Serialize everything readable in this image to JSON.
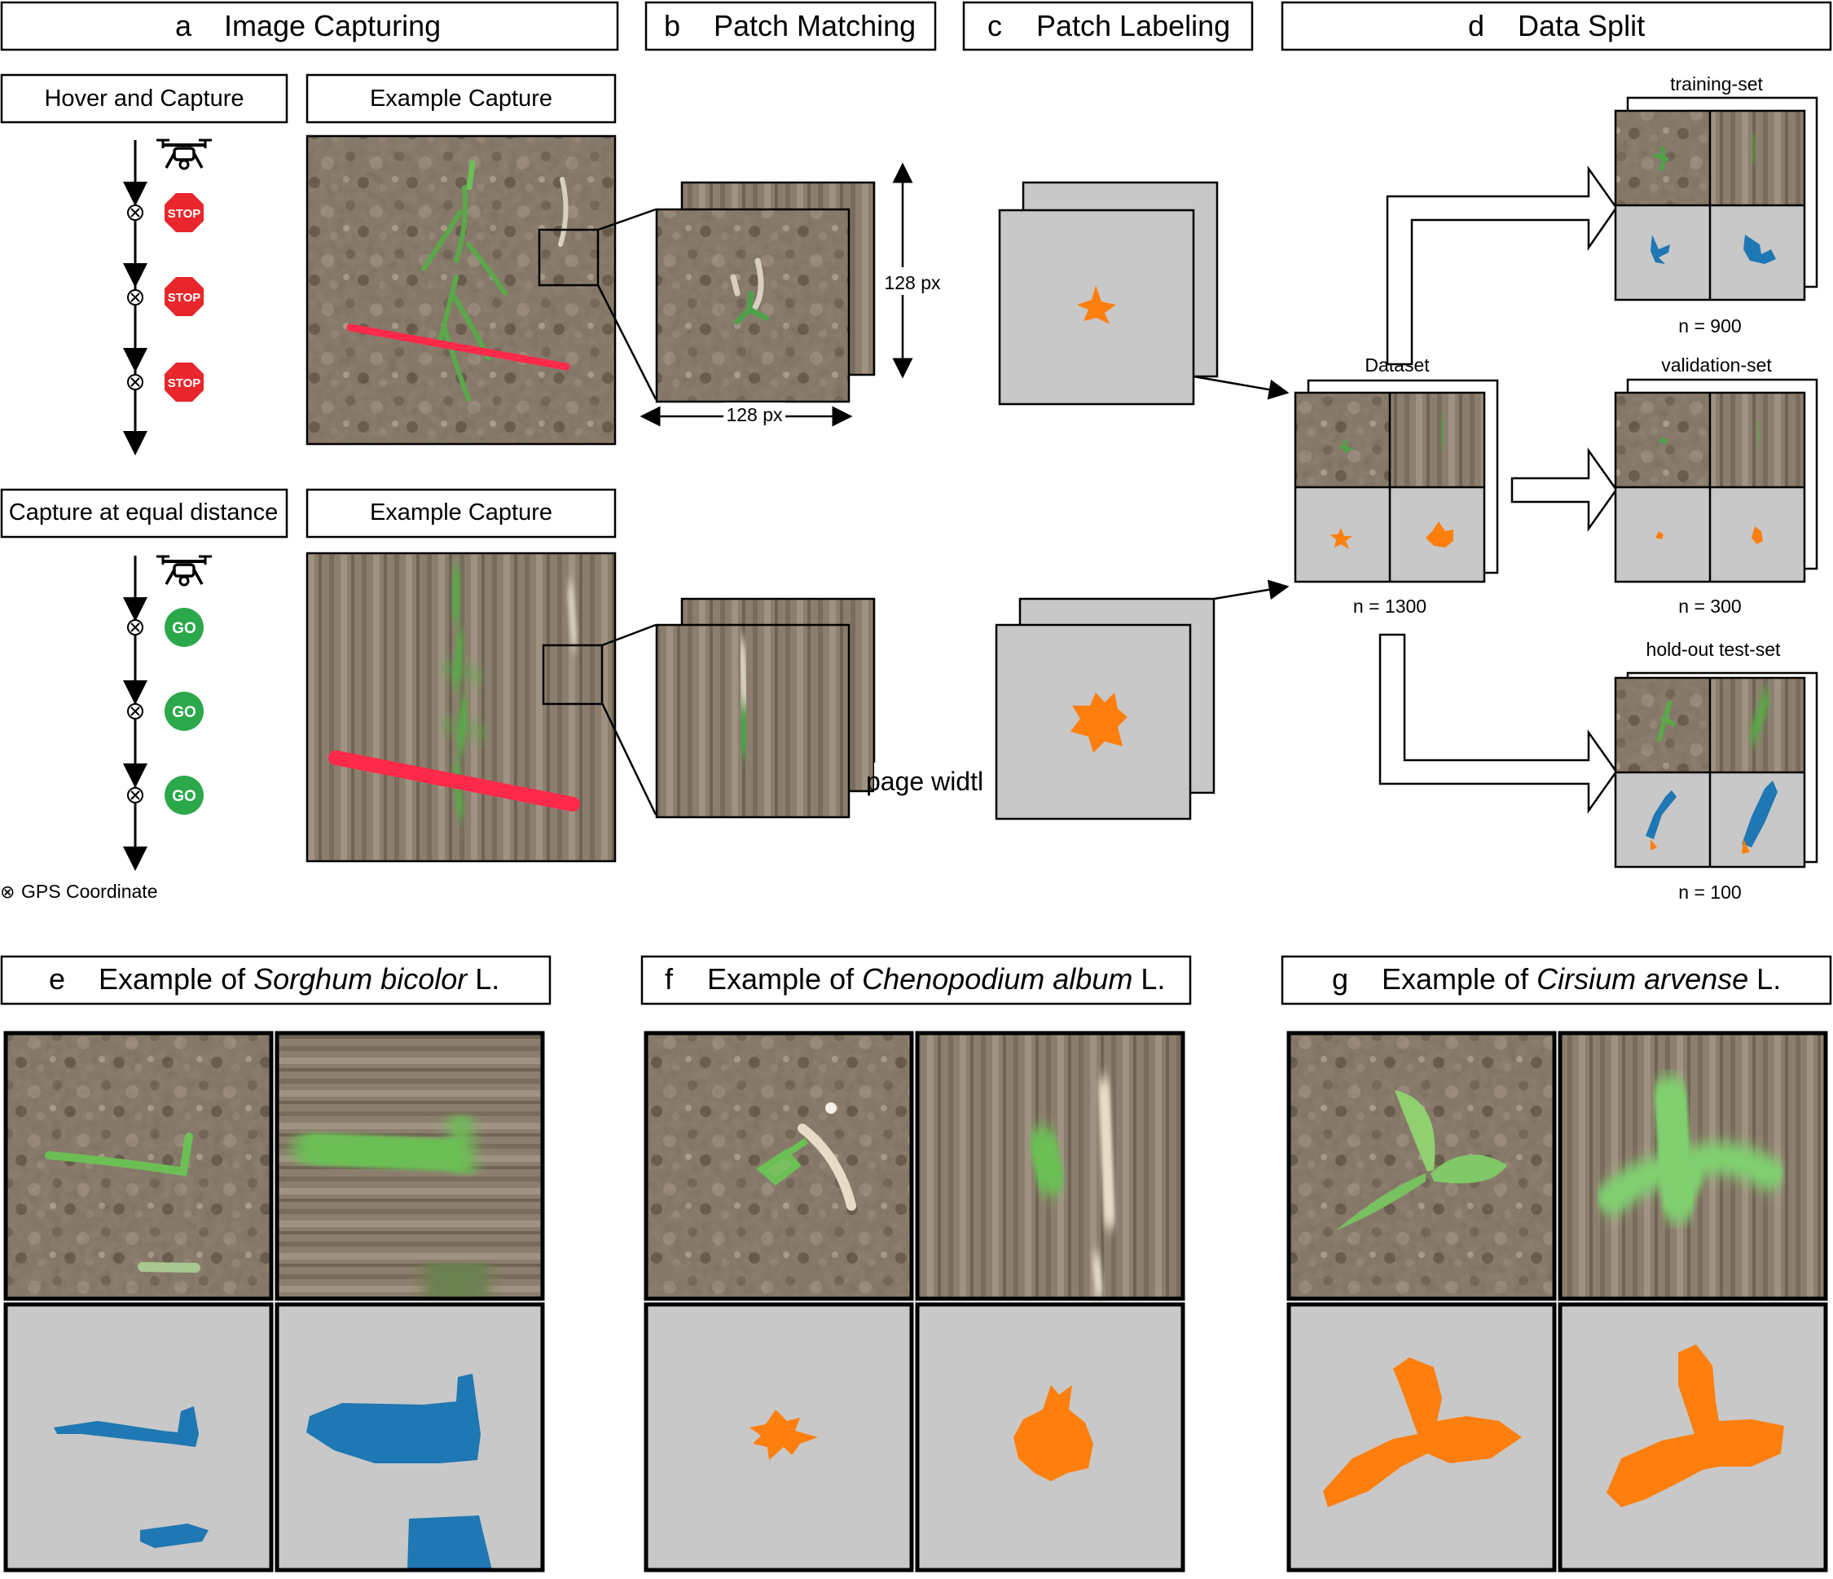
{
  "panels": {
    "a": {
      "letter": "a",
      "title": "Image Capturing"
    },
    "b": {
      "letter": "b",
      "title": "Patch Matching"
    },
    "c": {
      "letter": "c",
      "title": "Patch Labeling"
    },
    "d": {
      "letter": "d",
      "title": "Data Split"
    },
    "e": {
      "letter": "e",
      "prefix": "Example of ",
      "species": "Sorghum bicolor",
      "suffix": " L."
    },
    "f": {
      "letter": "f",
      "prefix": "Example of ",
      "species": "Chenopodium album",
      "suffix": " L."
    },
    "g": {
      "letter": "g",
      "prefix": "Example of ",
      "species": "Cirsium arvense",
      "suffix": " L."
    }
  },
  "capture": {
    "hover_title": "Hover and Capture",
    "equal_title": "Capture at equal distance",
    "example_title": "Example Capture",
    "stop_label": "STOP",
    "go_label": "GO",
    "gps_legend": "GPS Coordinate",
    "gps_symbol": "⊗"
  },
  "patch": {
    "width_label": "128 px",
    "height_label": "128 px",
    "stray_text": "page widtl"
  },
  "split": {
    "dataset_label": "Dataset",
    "dataset_n": "n = 1300",
    "train_label": "training-set",
    "train_n": "n = 900",
    "val_label": "validation-set",
    "val_n": "n = 300",
    "test_label": "hold-out test-set",
    "test_n": "n = 100"
  },
  "colors": {
    "crop_blue": "#1f77b4",
    "weed_orange": "#ff7f0e",
    "mask_gray": "#c8c8c8",
    "soil": "#8b7d6e",
    "stop_red": "#e8262b",
    "go_green": "#2aa84a",
    "marker_red": "#ff2a4a"
  }
}
